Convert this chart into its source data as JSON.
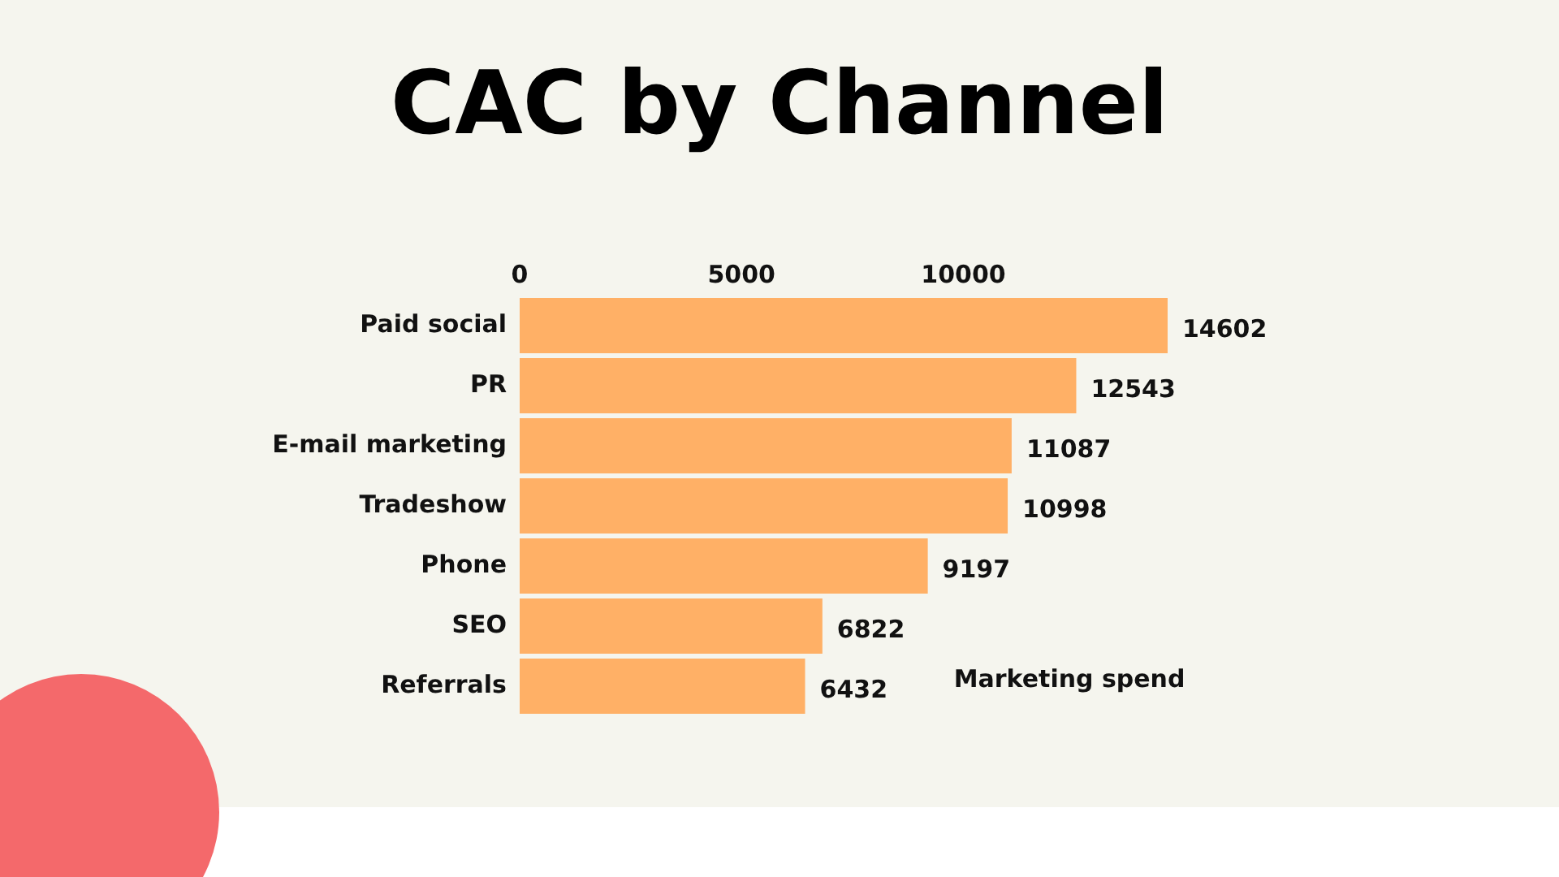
{
  "chart_data": {
    "type": "bar",
    "orientation": "horizontal",
    "title": "CAC by Channel",
    "xlabel": "Marketing spend",
    "categories": [
      "Paid social",
      "PR",
      "E-mail marketing",
      "Tradeshow",
      "Phone",
      "SEO",
      "Referrals"
    ],
    "values": [
      14602,
      12543,
      11087,
      10998,
      9197,
      6822,
      6432
    ],
    "color": "#ffb066",
    "xlim": [
      0,
      14602
    ],
    "xticks": [
      0,
      5000,
      10000
    ],
    "grid": false,
    "legend": false,
    "data_labels": true
  }
}
